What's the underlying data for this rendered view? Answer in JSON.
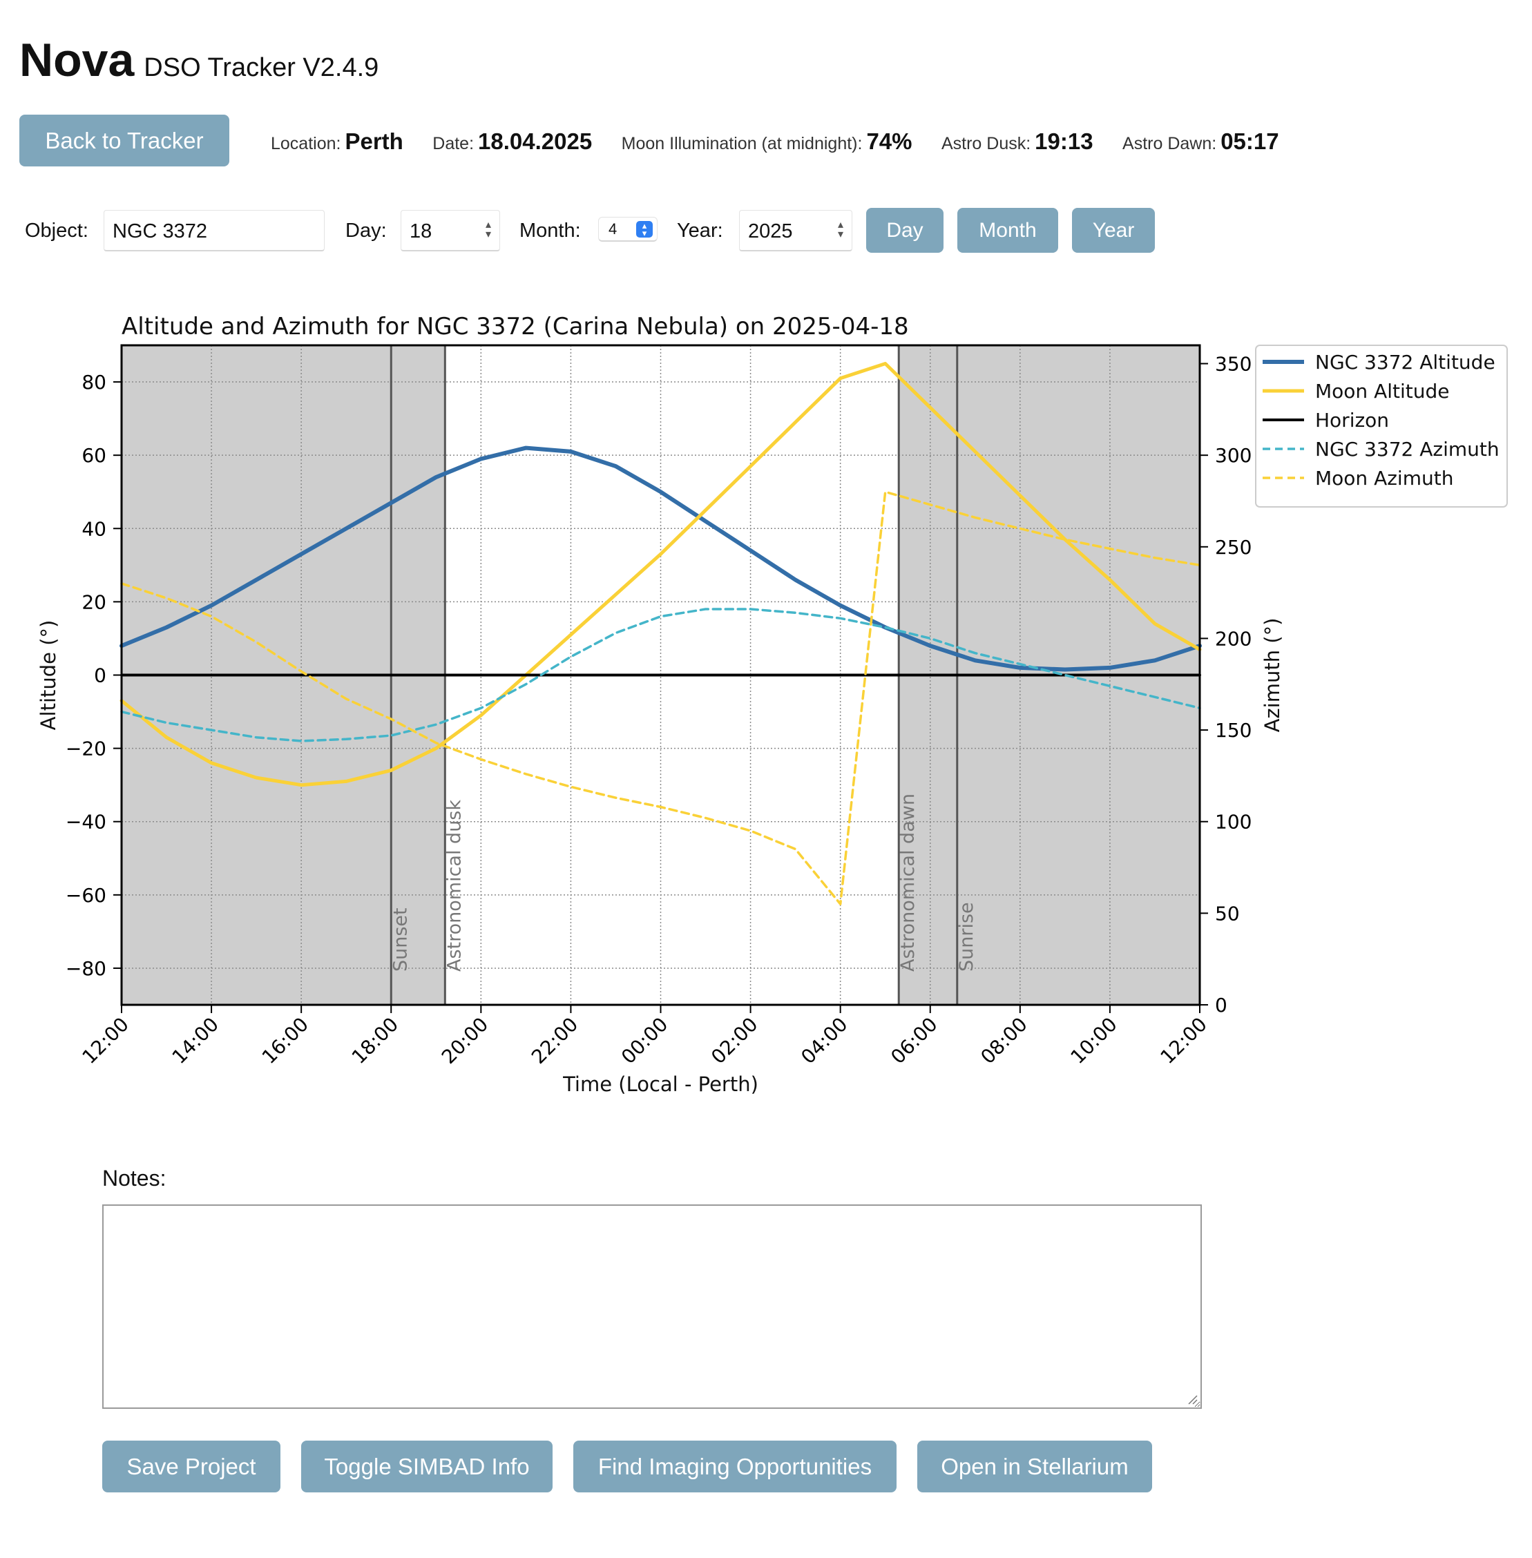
{
  "header": {
    "brand": "Nova",
    "subtitle": "DSO Tracker V2.4.9"
  },
  "back_button": "Back to Tracker",
  "info": {
    "location_label": "Location:",
    "location": "Perth",
    "date_label": "Date:",
    "date": "18.04.2025",
    "moon_label": "Moon Illumination (at midnight):",
    "moon": "74%",
    "dusk_label": "Astro Dusk:",
    "dusk": "19:13",
    "dawn_label": "Astro Dawn:",
    "dawn": "05:17"
  },
  "controls": {
    "object_label": "Object:",
    "object_value": "NGC 3372",
    "day_label": "Day:",
    "day_value": "18",
    "month_label": "Month:",
    "month_value": "4",
    "year_label": "Year:",
    "year_value": "2025",
    "day_button": "Day",
    "month_button": "Month",
    "year_button": "Year"
  },
  "notes": {
    "label": "Notes:",
    "value": ""
  },
  "actions": {
    "save": "Save Project",
    "simbad": "Toggle SIMBAD Info",
    "opportunities": "Find Imaging Opportunities",
    "stellarium": "Open in Stellarium"
  },
  "chart_data": {
    "type": "line",
    "title": "Altitude and Azimuth for NGC 3372 (Carina Nebula) on 2025-04-18",
    "xlabel": "Time (Local - Perth)",
    "ylabel": "Altitude (°)",
    "y2label": "Azimuth (°)",
    "xlim": [
      0,
      24
    ],
    "ylim": [
      -90,
      90
    ],
    "y2lim": [
      0,
      360
    ],
    "x_ticks": [
      0,
      2,
      4,
      6,
      8,
      10,
      12,
      14,
      16,
      18,
      20,
      22,
      24
    ],
    "x_tick_labels": [
      "12:00",
      "14:00",
      "16:00",
      "18:00",
      "20:00",
      "22:00",
      "00:00",
      "02:00",
      "04:00",
      "06:00",
      "08:00",
      "10:00",
      "12:00"
    ],
    "y_ticks": [
      -80,
      -60,
      -40,
      -20,
      0,
      20,
      40,
      60,
      80
    ],
    "y_tick_labels": [
      "−80",
      "−60",
      "−40",
      "−20",
      "0",
      "20",
      "40",
      "60",
      "80"
    ],
    "y2_ticks": [
      0,
      50,
      100,
      150,
      200,
      250,
      300,
      350
    ],
    "grid": true,
    "legend_position": "outside-right-top",
    "shaded_regions": [
      [
        0,
        7.2
      ],
      [
        17.3,
        24
      ]
    ],
    "events": [
      {
        "x": 6.0,
        "label": "Sunset"
      },
      {
        "x": 7.2,
        "label": "Astronomical dusk"
      },
      {
        "x": 17.3,
        "label": "Astronomical dawn"
      },
      {
        "x": 18.6,
        "label": "Sunrise"
      }
    ],
    "x": [
      0,
      1,
      2,
      3,
      4,
      5,
      6,
      7,
      8,
      9,
      10,
      11,
      12,
      13,
      14,
      15,
      16,
      17,
      18,
      19,
      20,
      21,
      22,
      23,
      24
    ],
    "series": [
      {
        "name": "NGC 3372 Altitude",
        "axis": "left",
        "style": "solid",
        "color": "#336ea8",
        "width": 6,
        "values": [
          8,
          13,
          19,
          26,
          33,
          40,
          47,
          54,
          59,
          62,
          61,
          57,
          50,
          42,
          34,
          26,
          19,
          13,
          8,
          4,
          2,
          1.5,
          2,
          4,
          8
        ]
      },
      {
        "name": "Moon Altitude",
        "axis": "left",
        "style": "solid",
        "color": "#fad137",
        "width": 5,
        "values": [
          -7,
          -17,
          -24,
          -28,
          -30,
          -29,
          -26,
          -20,
          -11,
          0,
          11,
          22,
          33,
          45,
          57,
          69,
          81,
          85,
          73,
          61,
          49,
          37,
          26,
          14,
          7
        ]
      },
      {
        "name": "Horizon",
        "axis": "left",
        "style": "solid",
        "color": "#000000",
        "width": 4,
        "values": [
          0,
          0,
          0,
          0,
          0,
          0,
          0,
          0,
          0,
          0,
          0,
          0,
          0,
          0,
          0,
          0,
          0,
          0,
          0,
          0,
          0,
          0,
          0,
          0,
          0
        ]
      },
      {
        "name": "NGC 3372 Azimuth",
        "axis": "right",
        "style": "dashed",
        "color": "#44b5c9",
        "width": 3.5,
        "values": [
          160,
          154,
          150,
          146,
          144,
          145,
          147,
          153,
          162,
          175,
          190,
          203,
          212,
          216,
          216,
          214,
          211,
          206,
          200,
          192,
          186,
          180,
          174,
          168,
          162
        ]
      },
      {
        "name": "Moon Azimuth",
        "axis": "right",
        "style": "dashed",
        "color": "#fad137",
        "width": 3.5,
        "values": [
          230,
          222,
          212,
          198,
          182,
          167,
          156,
          143,
          134,
          126,
          119,
          113,
          108,
          102,
          95,
          85,
          55,
          280,
          273,
          266,
          260,
          254,
          249,
          244,
          240
        ]
      }
    ]
  }
}
